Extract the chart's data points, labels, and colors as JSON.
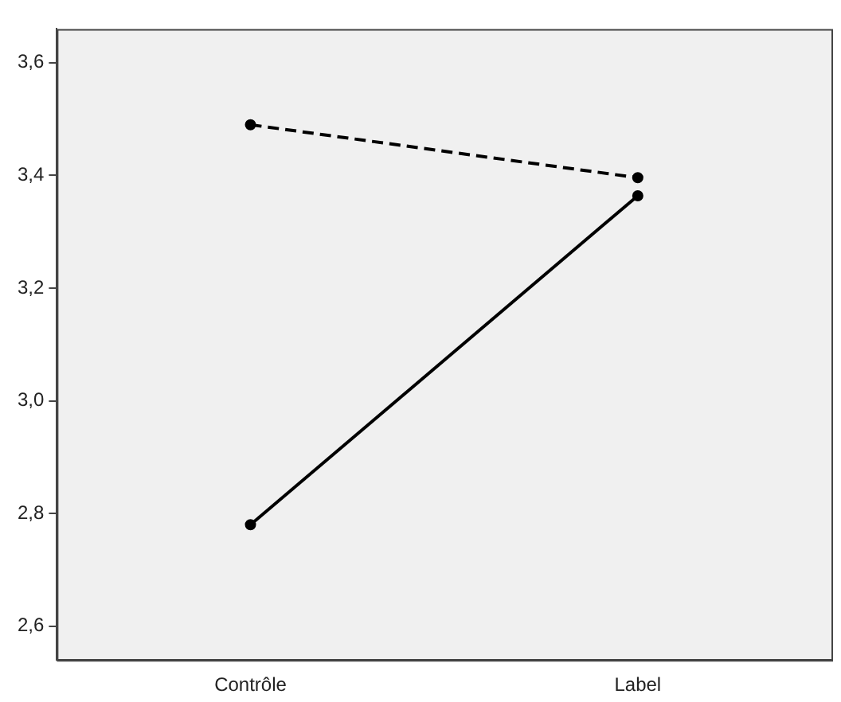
{
  "chart_data": {
    "type": "line",
    "categories": [
      "Contrôle",
      "Label"
    ],
    "series": [
      {
        "color": "#000000",
        "values": [
          3.49,
          3.396
        ],
        "line_style": "dashed"
      },
      {
        "color": "#000000",
        "values": [
          2.78,
          3.364
        ],
        "line_style": "solid"
      }
    ],
    "ylim": [
      2.54,
      3.66
    ],
    "yticks": [
      {
        "value": 2.6,
        "label": "2,6"
      },
      {
        "value": 2.8,
        "label": "2,8"
      },
      {
        "value": 3.0,
        "label": "3,0"
      },
      {
        "value": 3.2,
        "label": "3,2"
      },
      {
        "value": 3.4,
        "label": "3,4"
      },
      {
        "value": 3.6,
        "label": "3,6"
      }
    ],
    "grid": false,
    "legend": false,
    "marker": "circle"
  }
}
